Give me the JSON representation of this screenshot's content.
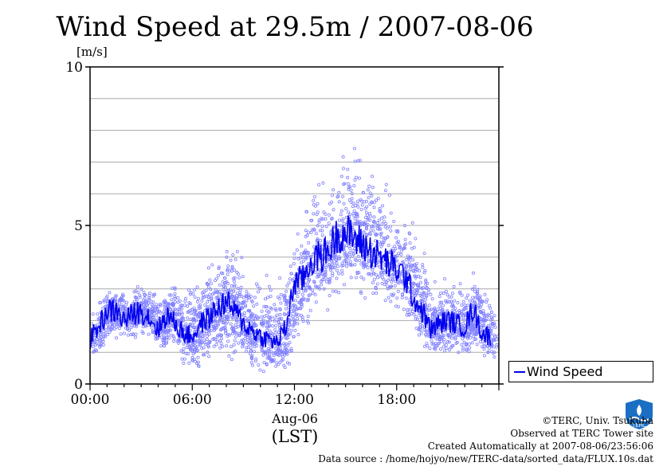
{
  "header": {
    "title": "Wind Speed at 29.5m / 2007-08-06",
    "y_unit": "[m/s]"
  },
  "axis": {
    "x_sub_label": "Aug-06",
    "x_unit": "(LST)"
  },
  "legend": {
    "label": "Wind Speed"
  },
  "credits": [
    "©TERC, Univ. Tsukuba",
    "Observed at TERC Tower site",
    "Created Automatically at 2007-08-06/23:56:06",
    "Data source : /home/hojyo/new/TERC-data/sorted_data/FLUX.10s.dat"
  ],
  "logo": {
    "text": "TERC"
  },
  "colors": {
    "line": "#0000ee",
    "points": "#8080ff",
    "grid": "#aaaaaa"
  },
  "chart_data": {
    "type": "line",
    "title": "Wind Speed at 29.5m / 2007-08-06",
    "ylabel": "[m/s]",
    "xlabel": "Aug-06",
    "ylim": [
      0,
      10
    ],
    "y_ticks": [
      0,
      5,
      10
    ],
    "x_ticks": [
      "00:00",
      "06:00",
      "12:00",
      "18:00"
    ],
    "x_range_hours": [
      0,
      24
    ],
    "grid": true,
    "legend": "right",
    "series": [
      {
        "name": "Wind Speed",
        "x_hours": [
          0,
          0.5,
          1,
          1.5,
          2,
          2.5,
          3,
          3.5,
          4,
          4.5,
          5,
          5.5,
          6,
          6.5,
          7,
          7.5,
          8,
          8.5,
          9,
          9.5,
          10,
          10.5,
          11,
          11.5,
          12,
          12.5,
          13,
          13.5,
          14,
          14.5,
          15,
          15.5,
          16,
          16.5,
          17,
          17.5,
          18,
          18.5,
          19,
          19.5,
          20,
          20.5,
          21,
          21.5,
          22,
          22.5,
          23,
          23.5
        ],
        "values": [
          1.4,
          1.8,
          2.3,
          2.3,
          2.0,
          2.2,
          2.3,
          2.1,
          1.7,
          2.2,
          1.9,
          1.6,
          1.5,
          1.9,
          2.1,
          2.4,
          2.6,
          2.3,
          1.9,
          1.7,
          1.5,
          1.4,
          1.3,
          1.8,
          3.2,
          3.3,
          3.9,
          4.0,
          4.2,
          4.7,
          4.8,
          4.6,
          4.4,
          4.2,
          4.0,
          3.8,
          3.6,
          3.4,
          2.7,
          2.3,
          1.7,
          1.9,
          2.0,
          1.9,
          1.8,
          2.4,
          1.6,
          1.5
        ]
      },
      {
        "name": "",
        "x_hours": [
          0,
          0.5,
          1,
          1.5,
          2,
          2.5,
          3,
          3.5,
          4,
          4.5,
          5,
          5.5,
          6,
          6.5,
          7,
          7.5,
          8,
          8.5,
          9,
          9.5,
          10,
          10.5,
          11,
          11.5,
          12,
          12.5,
          13,
          13.5,
          14,
          14.5,
          15,
          15.5,
          16,
          16.5,
          17,
          17.5,
          18,
          18.5,
          19,
          19.5,
          20,
          20.5,
          21,
          21.5,
          22,
          22.5,
          23,
          23.5
        ],
        "spread_min": [
          0.8,
          0.9,
          1.2,
          1.3,
          1.2,
          1.3,
          1.3,
          1.2,
          0.7,
          1.0,
          0.6,
          0.3,
          0.3,
          0.4,
          0.4,
          0.5,
          0.5,
          0.3,
          0.2,
          0.1,
          0.0,
          0.0,
          0.0,
          0.2,
          1.2,
          1.5,
          1.9,
          2.2,
          2.4,
          2.7,
          2.8,
          2.6,
          2.4,
          2.3,
          2.2,
          2.1,
          1.9,
          1.6,
          1.1,
          0.8,
          0.6,
          0.7,
          0.8,
          0.7,
          0.6,
          0.8,
          0.4,
          0.4
        ],
        "spread_max": [
          2.3,
          2.9,
          3.1,
          3.2,
          3.1,
          3.3,
          3.4,
          3.1,
          2.8,
          3.4,
          3.3,
          3.4,
          3.3,
          3.8,
          4.0,
          4.5,
          4.9,
          4.2,
          3.6,
          3.7,
          3.9,
          3.9,
          3.6,
          4.1,
          5.3,
          5.9,
          6.7,
          6.8,
          7.0,
          7.3,
          8.3,
          7.8,
          7.2,
          7.1,
          6.6,
          6.2,
          6.0,
          5.8,
          4.8,
          4.0,
          3.3,
          3.5,
          3.7,
          3.4,
          3.4,
          3.9,
          3.0,
          2.8
        ]
      }
    ]
  }
}
